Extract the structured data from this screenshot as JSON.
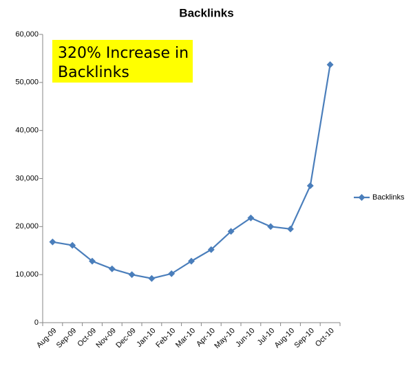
{
  "chart_data": {
    "type": "line",
    "title": "Backlinks",
    "annotation": "320% Increase in Backlinks",
    "categories": [
      "Aug-09",
      "Sep-09",
      "Oct-09",
      "Nov-09",
      "Dec-09",
      "Jan-10",
      "Feb-10",
      "Mar-10",
      "Apr-10",
      "May-10",
      "Jun-10",
      "Jul-10",
      "Aug-10",
      "Sep-10",
      "Oct-10"
    ],
    "series": [
      {
        "name": "Backlinks",
        "color": "#4a7ebb",
        "values": [
          16800,
          16100,
          12800,
          11200,
          10000,
          9200,
          10200,
          12800,
          15200,
          19000,
          21800,
          20000,
          19500,
          28500,
          53700
        ]
      }
    ],
    "ylim": [
      0,
      60000
    ],
    "yticks": [
      0,
      {
        "value": 10000,
        "label": "10,000"
      },
      {
        "value": 20000,
        "label": "20,000"
      },
      {
        "value": 30000,
        "label": "30,000"
      },
      {
        "value": 40000,
        "label": "40,000"
      },
      {
        "value": 50000,
        "label": "50,000"
      },
      {
        "value": 60000,
        "label": "60,000"
      }
    ],
    "grid": false,
    "legend": "right"
  }
}
